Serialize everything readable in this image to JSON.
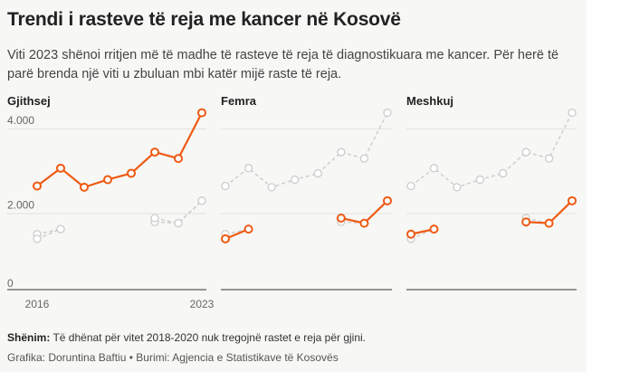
{
  "title": "Trendi i rasteve të reja me kancer në Kosovë",
  "subtitle": "Viti 2023 shënoi rritjen më të madhe të rasteve të reja të diagnostikuara me kancer. Për herë të parë brenda një viti u zbuluan mbi katër mijë raste të reja.",
  "footer": {
    "note_label": "Shënim:",
    "note_text": " Të dhënat për vitet 2018-2020 nuk tregojnë rastet e reja për gjini.",
    "credit": "Grafika: Doruntina Baftiu • Burimi: Agjencia e Statistikave të Kosovës"
  },
  "colors": {
    "accent": "#ee5a14",
    "context": "#cccccc",
    "grid": "#e2e2e2",
    "axis": "#333333"
  },
  "chart_data": [
    {
      "type": "line",
      "title": "Gjithsej",
      "x": [
        2016,
        2017,
        2018,
        2019,
        2020,
        2021,
        2022,
        2023
      ],
      "ylim": [
        0,
        4000
      ],
      "yticks": [
        {
          "value": 0,
          "label": "0"
        },
        {
          "value": 2000,
          "label": "2.000"
        },
        {
          "value": 4000,
          "label": "4.000"
        }
      ],
      "xticks": [
        {
          "value": 2016,
          "label": "2016"
        },
        {
          "value": 2023,
          "label": "2023"
        }
      ],
      "grid": true,
      "series": [
        {
          "role": "highlight",
          "values": [
            2450,
            2870,
            2420,
            2600,
            2750,
            3250,
            3100,
            4180
          ]
        },
        {
          "role": "context",
          "values": [
            1310,
            1430,
            null,
            null,
            null,
            1600,
            1570,
            2100
          ]
        },
        {
          "role": "context",
          "values": [
            1200,
            1430,
            null,
            null,
            null,
            1690,
            1570,
            2100
          ]
        }
      ]
    },
    {
      "type": "line",
      "title": "Femra",
      "x": [
        2016,
        2017,
        2018,
        2019,
        2020,
        2021,
        2022,
        2023
      ],
      "ylim": [
        0,
        4000
      ],
      "grid": true,
      "series": [
        {
          "role": "context",
          "values": [
            2450,
            2870,
            2420,
            2600,
            2750,
            3250,
            3100,
            4180
          ]
        },
        {
          "role": "context",
          "values": [
            1310,
            1430,
            null,
            null,
            null,
            1600,
            1570,
            2100
          ]
        },
        {
          "role": "highlight",
          "values": [
            1200,
            1430,
            null,
            null,
            null,
            1690,
            1570,
            2100
          ]
        }
      ]
    },
    {
      "type": "line",
      "title": "Meshkuj",
      "x": [
        2016,
        2017,
        2018,
        2019,
        2020,
        2021,
        2022,
        2023
      ],
      "ylim": [
        0,
        4000
      ],
      "grid": true,
      "series": [
        {
          "role": "context",
          "values": [
            2450,
            2870,
            2420,
            2600,
            2750,
            3250,
            3100,
            4180
          ]
        },
        {
          "role": "context",
          "values": [
            1200,
            1430,
            null,
            null,
            null,
            1690,
            1570,
            2100
          ]
        },
        {
          "role": "highlight",
          "values": [
            1310,
            1430,
            null,
            null,
            null,
            1600,
            1570,
            2100
          ]
        }
      ]
    }
  ]
}
